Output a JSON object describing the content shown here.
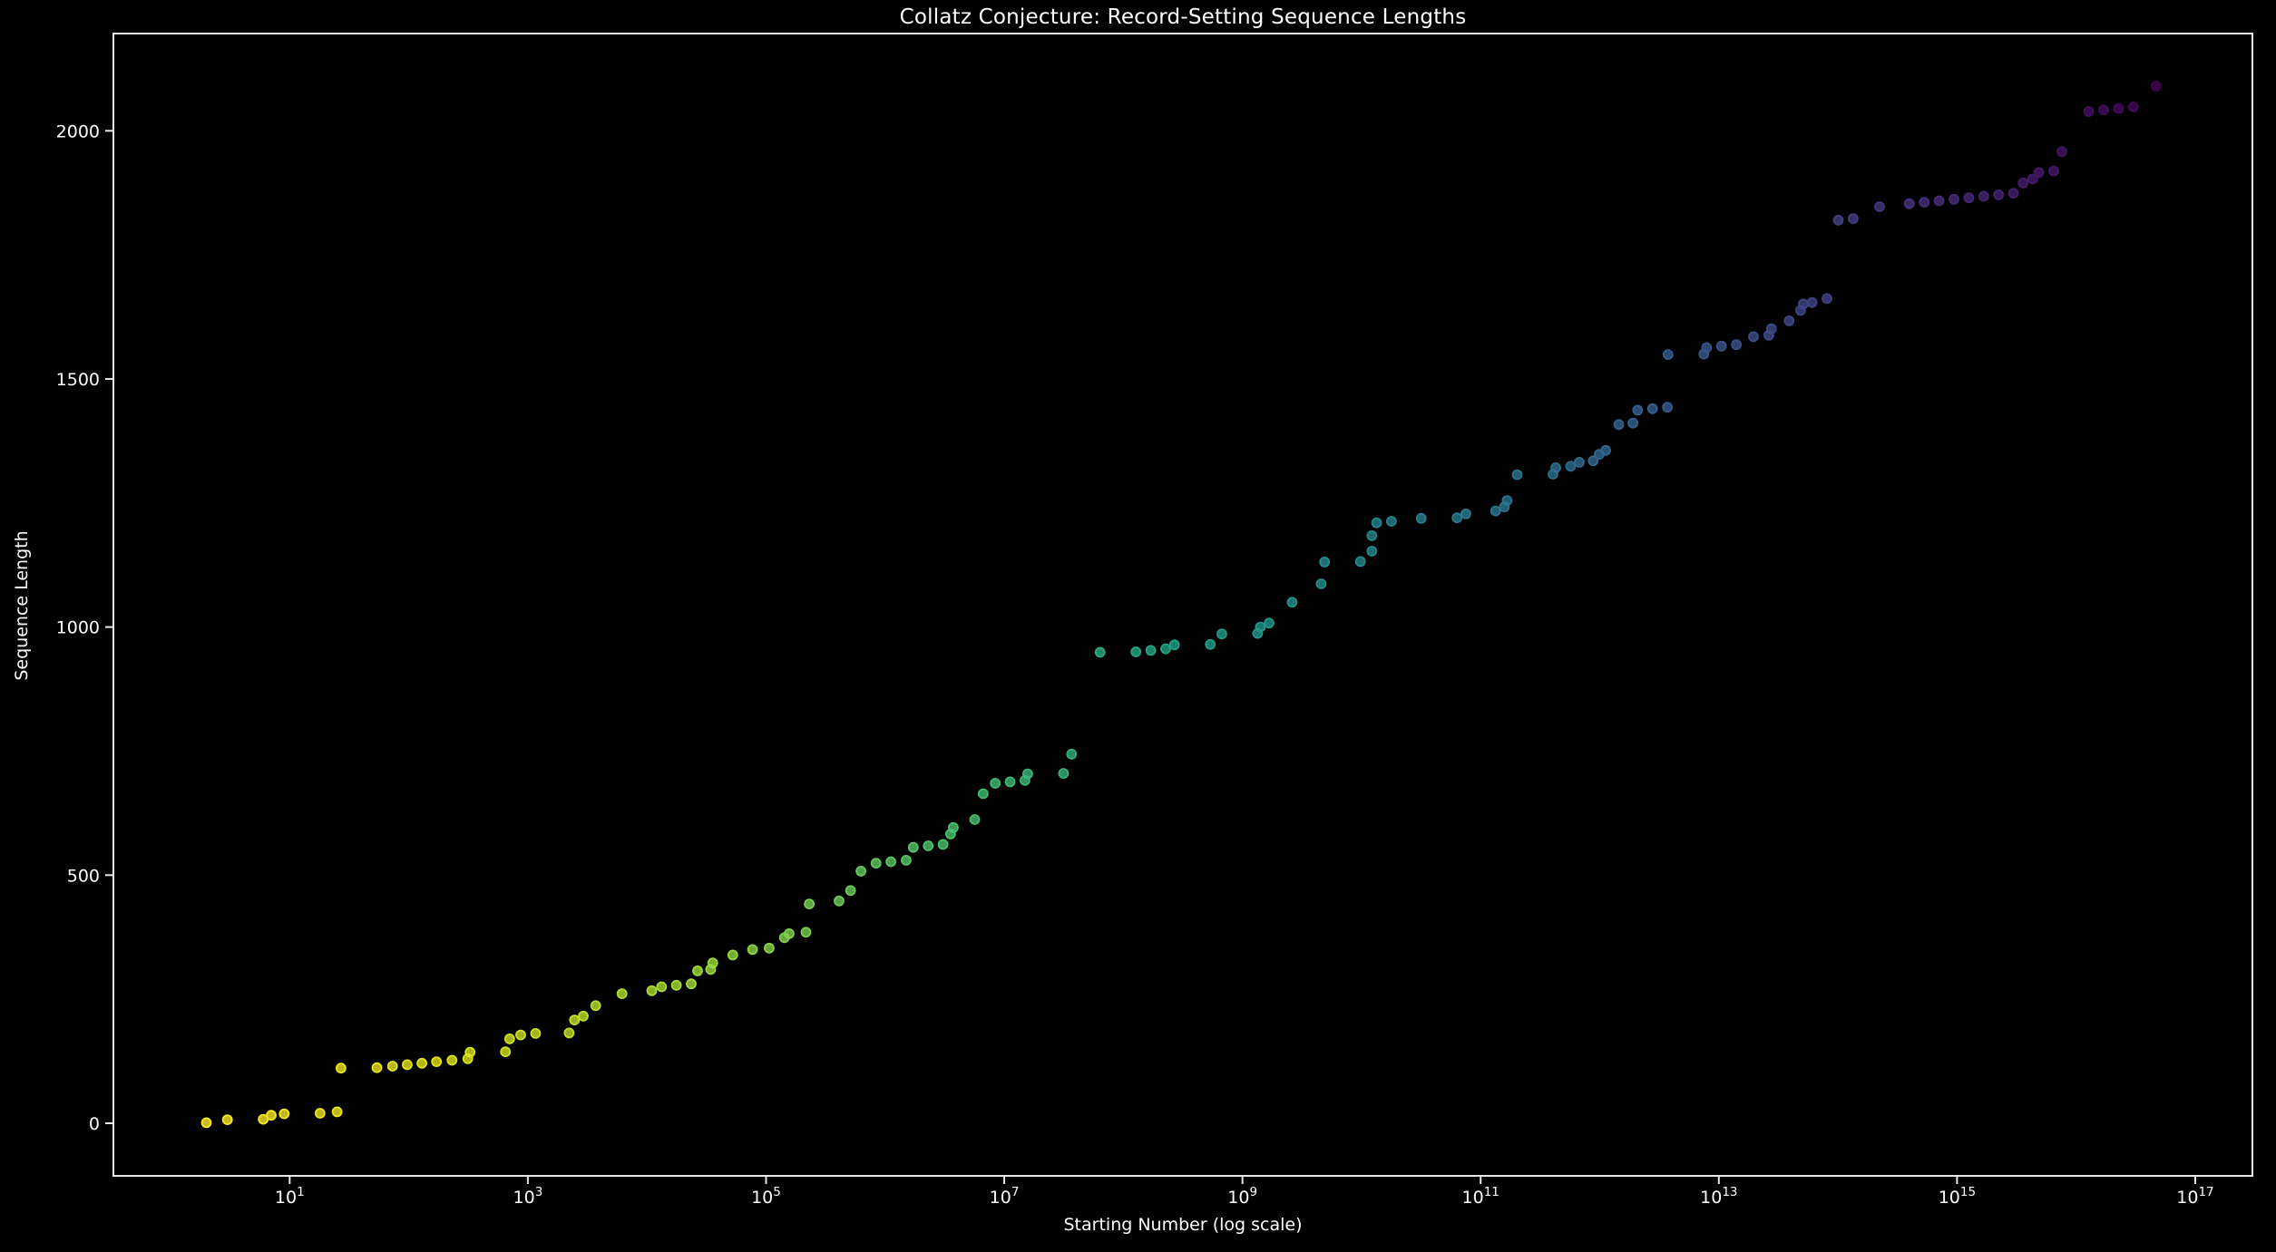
{
  "chart_data": {
    "type": "scatter",
    "title": "Collatz Conjecture: Record-Setting Sequence Lengths",
    "xlabel": "Starting Number (log scale)",
    "ylabel": "Sequence Length",
    "x_scale": "log",
    "x_tick_exponents": [
      1,
      3,
      5,
      7,
      9,
      11,
      13,
      15,
      17
    ],
    "y_ticks": [
      0,
      500,
      1000,
      1500,
      2000
    ],
    "xlim_log10": [
      -0.48,
      17.48
    ],
    "ylim": [
      -106,
      2196
    ],
    "grid": false,
    "legend": null,
    "background_color": "#000000",
    "axis_color": "#e8e8e8",
    "text_color": "#ffffff",
    "marker_alpha": 0.8,
    "colormap": "viridis-reversed-by-log-n",
    "viridis_stops": [
      "#440154",
      "#46327e",
      "#365c8d",
      "#277f8e",
      "#1fa187",
      "#4ac16d",
      "#a0da39",
      "#dfe318",
      "#fde725"
    ],
    "points": [
      [
        "2",
        1
      ],
      [
        "3",
        7
      ],
      [
        "6",
        8
      ],
      [
        "7",
        16
      ],
      [
        "9",
        19
      ],
      [
        "18",
        20
      ],
      [
        "25",
        23
      ],
      [
        "27",
        111
      ],
      [
        "54",
        112
      ],
      [
        "73",
        115
      ],
      [
        "97",
        118
      ],
      [
        "129",
        121
      ],
      [
        "171",
        124
      ],
      [
        "231",
        127
      ],
      [
        "313",
        130
      ],
      [
        "327",
        143
      ],
      [
        "649",
        144
      ],
      [
        "703",
        170
      ],
      [
        "871",
        178
      ],
      [
        "1161",
        181
      ],
      [
        "2223",
        182
      ],
      [
        "2463",
        208
      ],
      [
        "2919",
        216
      ],
      [
        "3711",
        237
      ],
      [
        "6171",
        261
      ],
      [
        "10971",
        267
      ],
      [
        "13255",
        275
      ],
      [
        "17647",
        278
      ],
      [
        "23529",
        281
      ],
      [
        "26623",
        307
      ],
      [
        "34239",
        310
      ],
      [
        "35655",
        323
      ],
      [
        "52527",
        339
      ],
      [
        "77031",
        350
      ],
      [
        "106239",
        353
      ],
      [
        "142587",
        374
      ],
      [
        "156159",
        382
      ],
      [
        "216367",
        385
      ],
      [
        "230631",
        442
      ],
      [
        "410011",
        448
      ],
      [
        "511935",
        469
      ],
      [
        "626331",
        508
      ],
      [
        "837799",
        524
      ],
      [
        "1117065",
        527
      ],
      [
        "1501353",
        530
      ],
      [
        "1723519",
        556
      ],
      [
        "2298025",
        559
      ],
      [
        "3064033",
        562
      ],
      [
        "3542887",
        583
      ],
      [
        "3732423",
        596
      ],
      [
        "5649499",
        612
      ],
      [
        "6649279",
        664
      ],
      [
        "8400511",
        685
      ],
      [
        "11200681",
        688
      ],
      [
        "14934241",
        691
      ],
      [
        "15733191",
        704
      ],
      [
        "31466382",
        705
      ],
      [
        "36791535",
        744
      ],
      [
        "63728127",
        949
      ],
      [
        "127456254",
        950
      ],
      [
        "169941673",
        953
      ],
      [
        "226588897",
        956
      ],
      [
        "268549803",
        964
      ],
      [
        "537099606",
        965
      ],
      [
        "670617279",
        986
      ],
      [
        "1341234558",
        987
      ],
      [
        "1412987847",
        1000
      ],
      [
        "1674652263",
        1008
      ],
      [
        "2610744987",
        1050
      ],
      [
        "4578853915",
        1087
      ],
      [
        "4890328815",
        1131
      ],
      [
        "9780657630",
        1132
      ],
      [
        "12212032815",
        1153
      ],
      [
        "12235060455",
        1184
      ],
      [
        "13371194527",
        1210
      ],
      [
        "17828259369",
        1213
      ],
      [
        "31694683323",
        1219
      ],
      [
        "63389366646",
        1220
      ],
      [
        "75128138247",
        1228
      ],
      [
        "133561134663",
        1234
      ],
      [
        "158294678119",
        1242
      ],
      [
        "166763117679",
        1255
      ],
      [
        "202485402111",
        1307
      ],
      [
        "404970804222",
        1308
      ],
      [
        "426635908975",
        1321
      ],
      [
        "568847878633",
        1324
      ],
      [
        "674190078379",
        1332
      ],
      [
        "881715740415",
        1335
      ],
      [
        "989345275647",
        1348
      ],
      [
        "1122382791663",
        1356
      ],
      [
        "1444338092271",
        1408
      ],
      [
        "1899148184679",
        1411
      ],
      [
        "2081751768559",
        1437
      ],
      [
        "2775669024745",
        1440
      ],
      [
        "3700892032993",
        1443
      ],
      [
        "3743559068799",
        1549
      ],
      [
        "7487118137598",
        1550
      ],
      [
        "7887663552367",
        1563
      ],
      [
        "10516884736489",
        1566
      ],
      [
        "14022512981985",
        1569
      ],
      [
        "19536224150271",
        1585
      ],
      [
        "26262557464201",
        1588
      ],
      [
        "27667550250351",
        1601
      ],
      [
        "38903934249727",
        1617
      ],
      [
        "48575069253735",
        1638
      ],
      [
        "51173735510107",
        1651
      ],
      [
        "60650353197163",
        1654
      ],
      [
        "80867137596217",
        1662
      ],
      [
        "100759293214567",
        1820
      ],
      [
        "134345724286089",
        1823
      ],
      [
        "223656998090055",
        1847
      ],
      [
        "397612441048987",
        1853
      ],
      [
        "530149921398649",
        1856
      ],
      [
        "706866561864865",
        1859
      ],
      [
        "942488749153153",
        1862
      ],
      [
        "1256651665537537",
        1865
      ],
      [
        "1675535554050049",
        1868
      ],
      [
        "2234047405400065",
        1871
      ],
      [
        "2978729873866753",
        1874
      ],
      [
        "3586720916237671",
        1895
      ],
      [
        "4320515538764287",
        1903
      ],
      [
        "4861718551722727",
        1916
      ],
      [
        "6482291402296969",
        1919
      ],
      [
        "7579309213675935",
        1958
      ],
      [
        "12769884180266527",
        2039
      ],
      [
        "17026512240355369",
        2042
      ],
      [
        "22702016320473825",
        2045
      ],
      [
        "30269355093965105",
        2048
      ],
      [
        "46785696846401151",
        2090
      ]
    ]
  }
}
